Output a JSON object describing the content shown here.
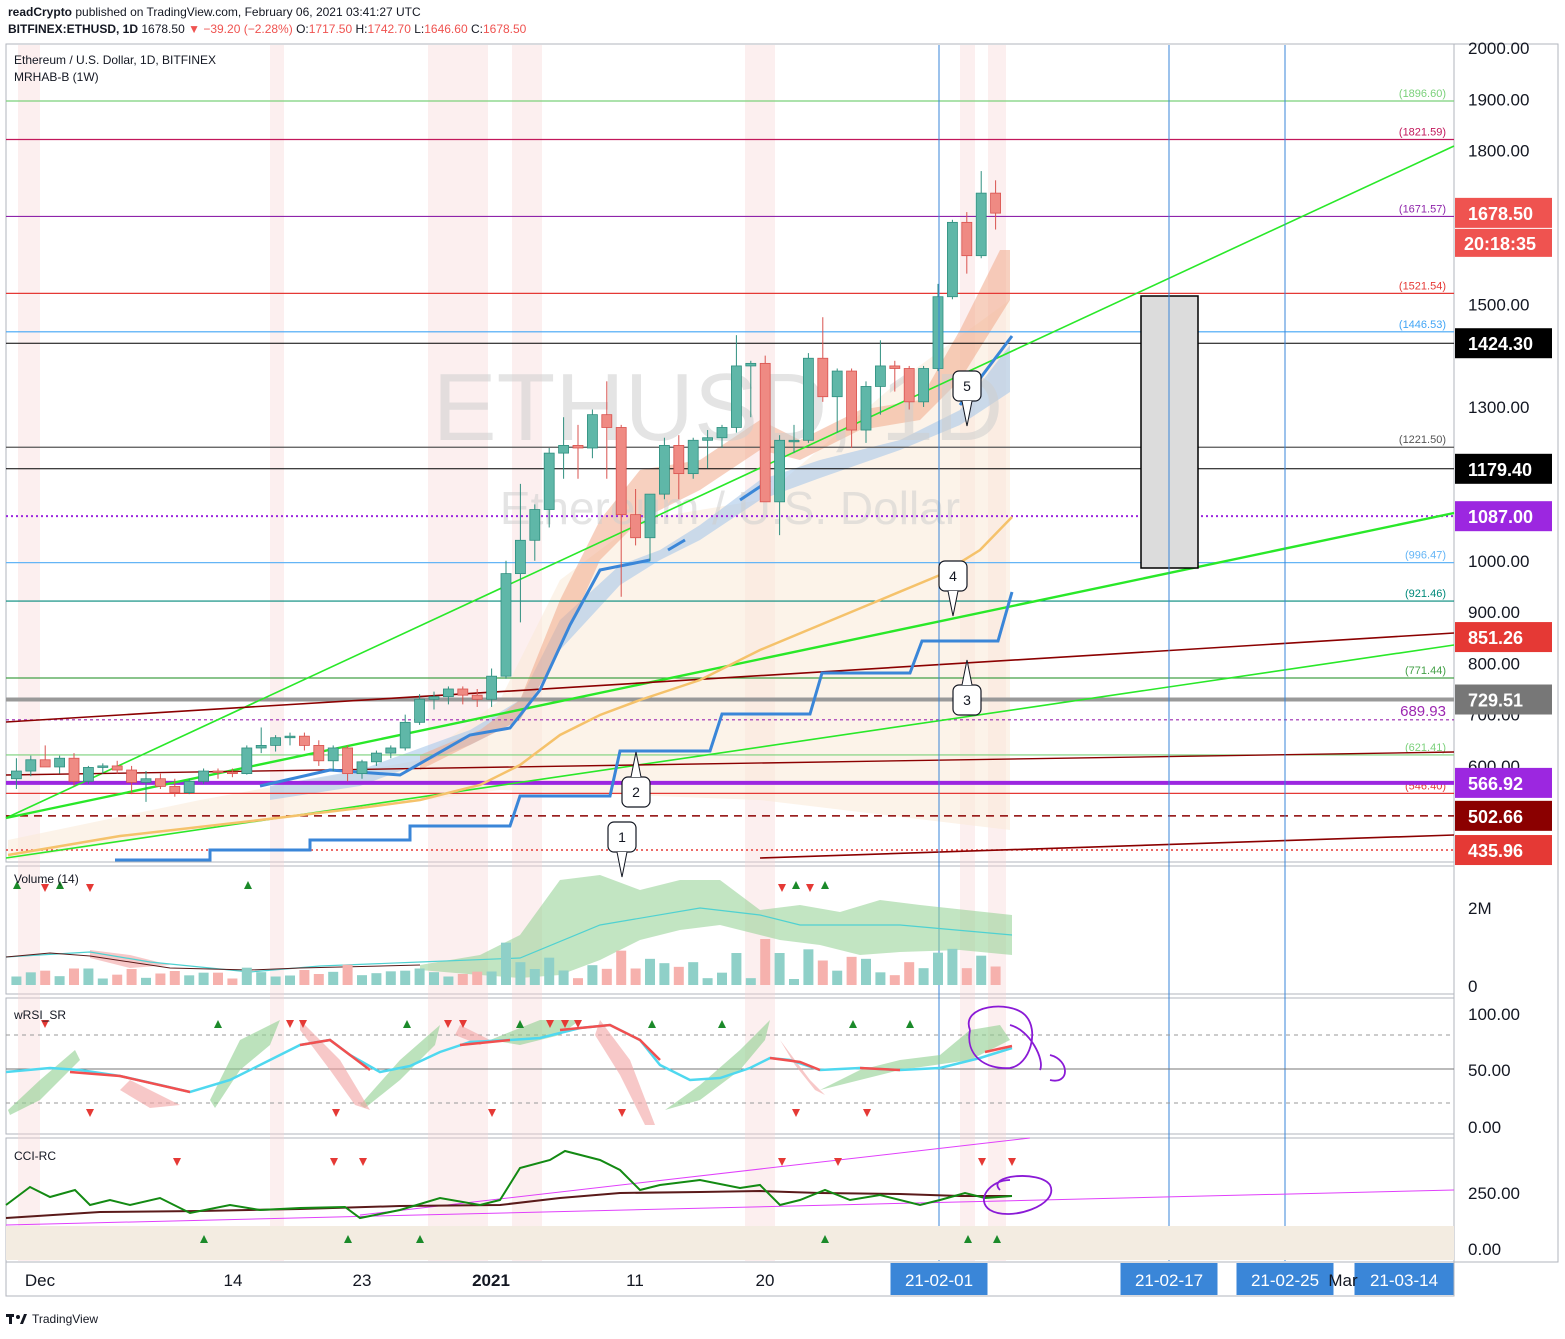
{
  "header": {
    "publisher": "readCrypto",
    "published_text": "published on TradingView.com, February 06, 2021 03:41:27 UTC",
    "symbol": "BITFINEX:ETHUSD, 1D",
    "last": "1678.50",
    "change": "−39.20 (−2.28%)",
    "open_label": "O:",
    "open": "1717.50",
    "high_label": "H:",
    "high": "1742.70",
    "low_label": "L:",
    "low": "1646.60",
    "close_label": "C:",
    "close": "1678.50"
  },
  "legend": {
    "title": "Ethereum / U.S. Dollar, 1D, BITFINEX",
    "indicator": "MRHAB-B (1W)"
  },
  "watermark": {
    "line1": "ETHUSD, 1D",
    "line2": "Ethereum / U.S. Dollar"
  },
  "panes": {
    "volume_label": "Volume (14)",
    "wrsi_label": "wRSI_SR",
    "cci_label": "CCI-RC"
  },
  "footer": {
    "brand": "TradingView"
  },
  "colors": {
    "up": "#5fb7a8",
    "down": "#ef8a83",
    "green_line": "#29e829",
    "blue_band": "#3a86d8",
    "orange_ma": "#f5c26b",
    "purple_level": "#9c27e0"
  },
  "chart_data": [
    {
      "type": "line",
      "pane": "price",
      "title": "Ethereum / U.S. Dollar, 1D, BITFINEX",
      "price_axis_ticks": [
        "2000.00",
        "1900.00",
        "1800.00",
        "1500.00",
        "1300.00",
        "1000.00",
        "900.00",
        "800.00",
        "700.00",
        "600.00"
      ],
      "time_axis_ticks": [
        "Dec",
        "14",
        "23",
        "2021",
        "11",
        "20",
        "21-02-01",
        "21-02-17",
        "21-02-25",
        "Mar",
        "21-03-14"
      ],
      "ylim": [
        435,
        2030
      ],
      "candles": [
        {
          "d": "2020-11-30",
          "o": 575,
          "h": 615,
          "l": 555,
          "c": 590
        },
        {
          "d": "2020-12-01",
          "o": 590,
          "h": 620,
          "l": 580,
          "c": 612
        },
        {
          "d": "2020-12-02",
          "o": 612,
          "h": 640,
          "l": 605,
          "c": 598
        },
        {
          "d": "2020-12-03",
          "o": 598,
          "h": 620,
          "l": 585,
          "c": 615
        },
        {
          "d": "2020-12-04",
          "o": 615,
          "h": 625,
          "l": 560,
          "c": 570
        },
        {
          "d": "2020-12-05",
          "o": 570,
          "h": 600,
          "l": 565,
          "c": 597
        },
        {
          "d": "2020-12-06",
          "o": 597,
          "h": 605,
          "l": 585,
          "c": 600
        },
        {
          "d": "2020-12-07",
          "o": 600,
          "h": 610,
          "l": 585,
          "c": 592
        },
        {
          "d": "2020-12-08",
          "o": 592,
          "h": 600,
          "l": 545,
          "c": 568
        },
        {
          "d": "2020-12-09",
          "o": 568,
          "h": 590,
          "l": 530,
          "c": 575
        },
        {
          "d": "2020-12-10",
          "o": 575,
          "h": 585,
          "l": 555,
          "c": 560
        },
        {
          "d": "2020-12-11",
          "o": 560,
          "h": 575,
          "l": 540,
          "c": 548
        },
        {
          "d": "2020-12-12",
          "o": 548,
          "h": 575,
          "l": 545,
          "c": 570
        },
        {
          "d": "2020-12-13",
          "o": 570,
          "h": 595,
          "l": 565,
          "c": 590
        },
        {
          "d": "2020-12-14",
          "o": 590,
          "h": 595,
          "l": 575,
          "c": 588
        },
        {
          "d": "2020-12-15",
          "o": 588,
          "h": 595,
          "l": 578,
          "c": 585
        },
        {
          "d": "2020-12-16",
          "o": 585,
          "h": 640,
          "l": 583,
          "c": 635
        },
        {
          "d": "2020-12-17",
          "o": 635,
          "h": 675,
          "l": 625,
          "c": 640
        },
        {
          "d": "2020-12-18",
          "o": 640,
          "h": 660,
          "l": 628,
          "c": 655
        },
        {
          "d": "2020-12-19",
          "o": 655,
          "h": 665,
          "l": 640,
          "c": 658
        },
        {
          "d": "2020-12-20",
          "o": 658,
          "h": 665,
          "l": 630,
          "c": 640
        },
        {
          "d": "2020-12-21",
          "o": 640,
          "h": 650,
          "l": 600,
          "c": 610
        },
        {
          "d": "2020-12-22",
          "o": 610,
          "h": 640,
          "l": 590,
          "c": 635
        },
        {
          "d": "2020-12-23",
          "o": 635,
          "h": 640,
          "l": 570,
          "c": 585
        },
        {
          "d": "2020-12-24",
          "o": 585,
          "h": 612,
          "l": 575,
          "c": 608
        },
        {
          "d": "2020-12-25",
          "o": 608,
          "h": 630,
          "l": 600,
          "c": 625
        },
        {
          "d": "2020-12-26",
          "o": 625,
          "h": 640,
          "l": 615,
          "c": 635
        },
        {
          "d": "2020-12-27",
          "o": 635,
          "h": 700,
          "l": 630,
          "c": 685
        },
        {
          "d": "2020-12-28",
          "o": 685,
          "h": 740,
          "l": 680,
          "c": 730
        },
        {
          "d": "2020-12-29",
          "o": 730,
          "h": 745,
          "l": 710,
          "c": 735
        },
        {
          "d": "2020-12-30",
          "o": 735,
          "h": 755,
          "l": 720,
          "c": 750
        },
        {
          "d": "2020-12-31",
          "o": 750,
          "h": 755,
          "l": 720,
          "c": 738
        },
        {
          "d": "2021-01-01",
          "o": 738,
          "h": 750,
          "l": 715,
          "c": 730
        },
        {
          "d": "2021-01-02",
          "o": 730,
          "h": 790,
          "l": 715,
          "c": 775
        },
        {
          "d": "2021-01-03",
          "o": 775,
          "h": 1000,
          "l": 770,
          "c": 975
        },
        {
          "d": "2021-01-04",
          "o": 975,
          "h": 1150,
          "l": 880,
          "c": 1040
        },
        {
          "d": "2021-01-05",
          "o": 1040,
          "h": 1110,
          "l": 1000,
          "c": 1100
        },
        {
          "d": "2021-01-06",
          "o": 1100,
          "h": 1220,
          "l": 1065,
          "c": 1210
        },
        {
          "d": "2021-01-07",
          "o": 1210,
          "h": 1280,
          "l": 1160,
          "c": 1225
        },
        {
          "d": "2021-01-08",
          "o": 1225,
          "h": 1265,
          "l": 1160,
          "c": 1220
        },
        {
          "d": "2021-01-09",
          "o": 1220,
          "h": 1295,
          "l": 1200,
          "c": 1285
        },
        {
          "d": "2021-01-10",
          "o": 1285,
          "h": 1350,
          "l": 1160,
          "c": 1260
        },
        {
          "d": "2021-01-11",
          "o": 1260,
          "h": 1265,
          "l": 930,
          "c": 1090
        },
        {
          "d": "2021-01-12",
          "o": 1090,
          "h": 1140,
          "l": 1030,
          "c": 1045
        },
        {
          "d": "2021-01-13",
          "o": 1045,
          "h": 1130,
          "l": 1000,
          "c": 1130
        },
        {
          "d": "2021-01-14",
          "o": 1130,
          "h": 1240,
          "l": 1120,
          "c": 1225
        },
        {
          "d": "2021-01-15",
          "o": 1225,
          "h": 1245,
          "l": 1120,
          "c": 1170
        },
        {
          "d": "2021-01-16",
          "o": 1170,
          "h": 1240,
          "l": 1160,
          "c": 1235
        },
        {
          "d": "2021-01-17",
          "o": 1235,
          "h": 1255,
          "l": 1180,
          "c": 1240
        },
        {
          "d": "2021-01-18",
          "o": 1240,
          "h": 1265,
          "l": 1220,
          "c": 1260
        },
        {
          "d": "2021-01-19",
          "o": 1260,
          "h": 1440,
          "l": 1250,
          "c": 1380
        },
        {
          "d": "2021-01-20",
          "o": 1380,
          "h": 1390,
          "l": 1280,
          "c": 1385
        },
        {
          "d": "2021-01-21",
          "o": 1385,
          "h": 1400,
          "l": 1120,
          "c": 1115
        },
        {
          "d": "2021-01-22",
          "o": 1115,
          "h": 1245,
          "l": 1050,
          "c": 1235
        },
        {
          "d": "2021-01-23",
          "o": 1235,
          "h": 1265,
          "l": 1210,
          "c": 1235
        },
        {
          "d": "2021-01-24",
          "o": 1235,
          "h": 1405,
          "l": 1230,
          "c": 1395
        },
        {
          "d": "2021-01-25",
          "o": 1395,
          "h": 1475,
          "l": 1310,
          "c": 1320
        },
        {
          "d": "2021-01-26",
          "o": 1320,
          "h": 1375,
          "l": 1250,
          "c": 1370
        },
        {
          "d": "2021-01-27",
          "o": 1370,
          "h": 1375,
          "l": 1220,
          "c": 1255
        },
        {
          "d": "2021-01-28",
          "o": 1255,
          "h": 1350,
          "l": 1230,
          "c": 1340
        },
        {
          "d": "2021-01-29",
          "o": 1340,
          "h": 1430,
          "l": 1285,
          "c": 1380
        },
        {
          "d": "2021-01-30",
          "o": 1380,
          "h": 1390,
          "l": 1330,
          "c": 1375
        },
        {
          "d": "2021-01-31",
          "o": 1375,
          "h": 1380,
          "l": 1295,
          "c": 1310
        },
        {
          "d": "2021-02-01",
          "o": 1310,
          "h": 1380,
          "l": 1300,
          "c": 1375
        },
        {
          "d": "2021-02-02",
          "o": 1375,
          "h": 1540,
          "l": 1370,
          "c": 1515
        },
        {
          "d": "2021-02-03",
          "o": 1515,
          "h": 1665,
          "l": 1510,
          "c": 1660
        },
        {
          "d": "2021-02-04",
          "o": 1660,
          "h": 1680,
          "l": 1560,
          "c": 1595
        },
        {
          "d": "2021-02-05",
          "o": 1595,
          "h": 1760,
          "l": 1590,
          "c": 1717
        },
        {
          "d": "2021-02-06",
          "o": 1717,
          "h": 1742,
          "l": 1646,
          "c": 1678
        }
      ],
      "horizontal_levels": [
        {
          "value": 1896.6,
          "label": "(1896.60)",
          "color": "#7bd17b"
        },
        {
          "value": 1821.59,
          "label": "(1821.59)",
          "color": "#c2185b"
        },
        {
          "value": 1671.57,
          "label": "(1671.57)",
          "color": "#8e24aa"
        },
        {
          "value": 1521.54,
          "label": "(1521.54)",
          "color": "#e53935"
        },
        {
          "value": 1446.53,
          "label": "(1446.53)",
          "color": "#42a5f5"
        },
        {
          "value": 1221.5,
          "label": "(1221.50)",
          "color": "#555555"
        },
        {
          "value": 996.47,
          "label": "(996.47)",
          "color": "#64b5f6"
        },
        {
          "value": 921.46,
          "label": "(921.46)",
          "color": "#00897b"
        },
        {
          "value": 771.44,
          "label": "(771.44)",
          "color": "#43a047"
        },
        {
          "value": 621.41,
          "label": "(621.41)",
          "color": "#7bd17b"
        },
        {
          "value": 546.4,
          "label": "(546.40)",
          "color": "#e53935"
        },
        {
          "value": 689.93,
          "label": "689.93",
          "color": "#9c27b0"
        }
      ],
      "price_labels": [
        {
          "value": 1678.5,
          "text": "1678.50",
          "bg": "#ef5350"
        },
        {
          "value": 1424.3,
          "text": "1424.30",
          "bg": "#000000"
        },
        {
          "value": 1179.4,
          "text": "1179.40",
          "bg": "#000000"
        },
        {
          "value": 1087.0,
          "text": "1087.00",
          "bg": "#9c27e0"
        },
        {
          "value": 851.26,
          "text": "851.26",
          "bg": "#e53935"
        },
        {
          "value": 729.51,
          "text": "729.51",
          "bg": "#777777"
        },
        {
          "value": 566.92,
          "text": "566.92",
          "bg": "#9c27e0"
        },
        {
          "value": 502.66,
          "text": "502.66",
          "bg": "#8b0000"
        },
        {
          "value": 435.96,
          "text": "435.96",
          "bg": "#e53935"
        }
      ],
      "countdown": "20:18:35",
      "wave_labels": [
        "1",
        "2",
        "3",
        "4",
        "5"
      ],
      "date_markers": [
        "21-02-01",
        "21-02-17",
        "21-02-25",
        "21-03-14"
      ]
    },
    {
      "type": "bar",
      "pane": "volume",
      "title": "Volume (14)",
      "yticks": [
        "2M",
        "0"
      ]
    },
    {
      "type": "line",
      "pane": "wrsi",
      "title": "wRSI_SR",
      "yticks": [
        "100.00",
        "50.00",
        "0.00"
      ]
    },
    {
      "type": "line",
      "pane": "cci",
      "title": "CCI-RC",
      "yticks": [
        "250.00",
        "0.00"
      ]
    }
  ]
}
